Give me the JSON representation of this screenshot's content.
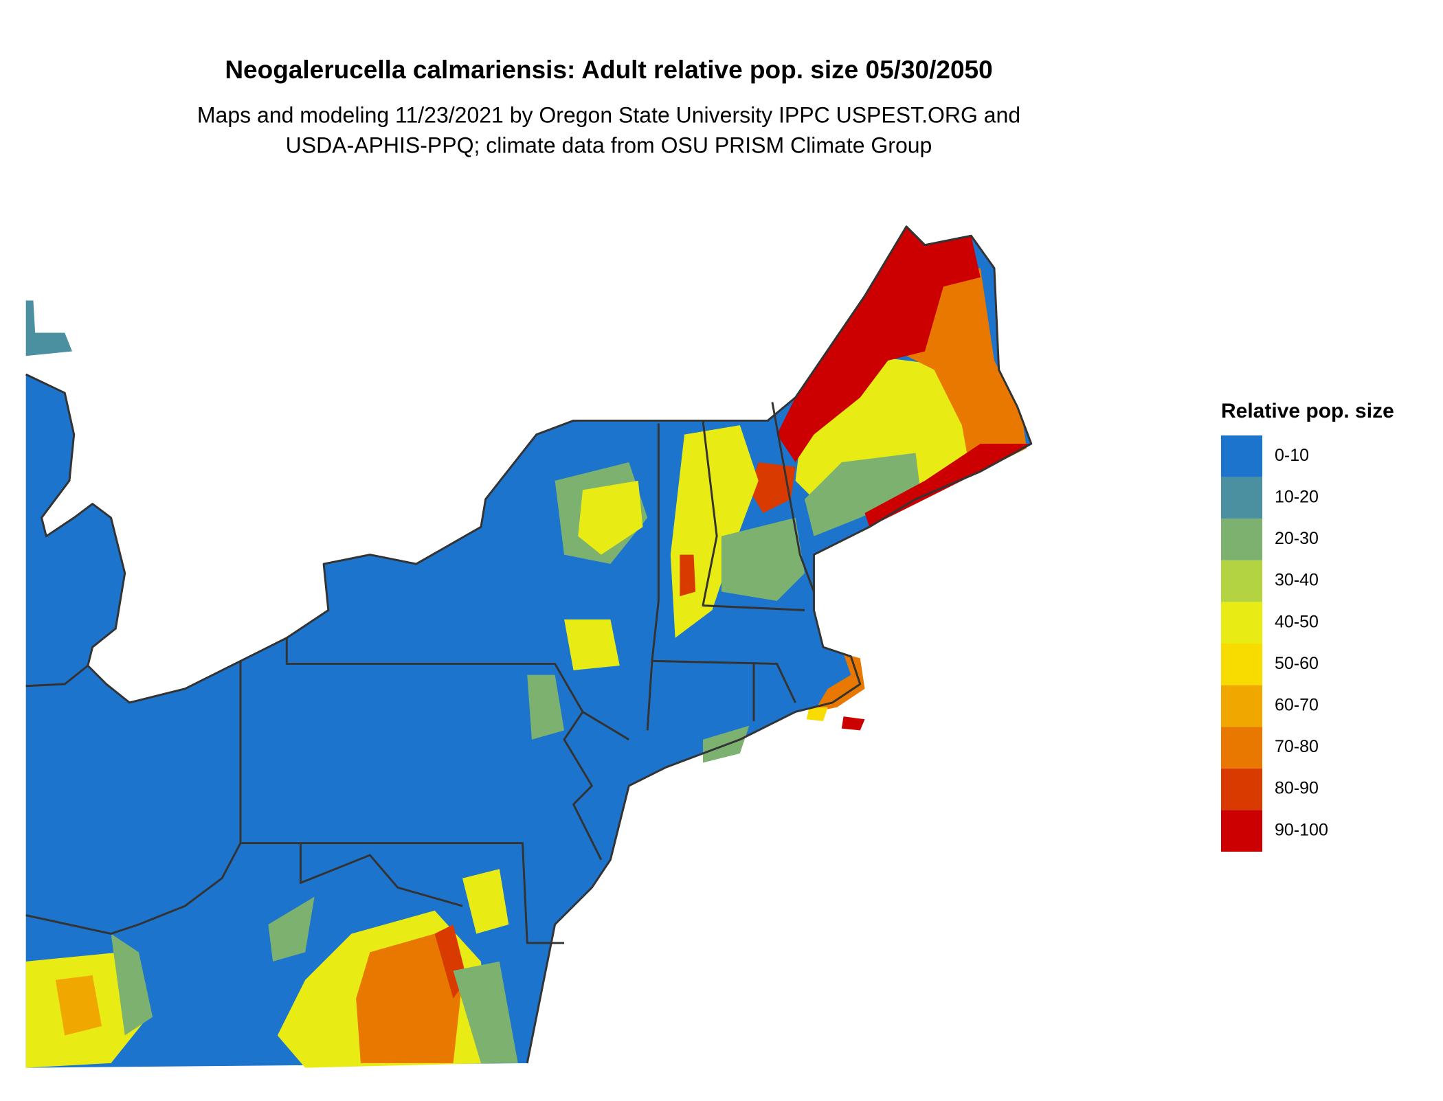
{
  "title": "Neogalerucella calmariensis: Adult relative pop. size 05/30/2050",
  "subtitle": [
    "Maps and modeling 11/23/2021 by Oregon State University IPPC USPEST.ORG and",
    "USDA-APHIS-PPQ; climate data from OSU PRISM Climate Group"
  ],
  "legend": {
    "title": "Relative pop. size",
    "items": [
      {
        "label": "0-10",
        "color": "#1c74cc"
      },
      {
        "label": "10-20",
        "color": "#4b90a0"
      },
      {
        "label": "20-30",
        "color": "#7db170"
      },
      {
        "label": "30-40",
        "color": "#b3d343"
      },
      {
        "label": "40-50",
        "color": "#e8ec14"
      },
      {
        "label": "50-60",
        "color": "#f8dc00"
      },
      {
        "label": "60-70",
        "color": "#f0a800"
      },
      {
        "label": "70-80",
        "color": "#e87800"
      },
      {
        "label": "80-90",
        "color": "#d83a00"
      },
      {
        "label": "90-100",
        "color": "#cc0000"
      }
    ]
  }
}
